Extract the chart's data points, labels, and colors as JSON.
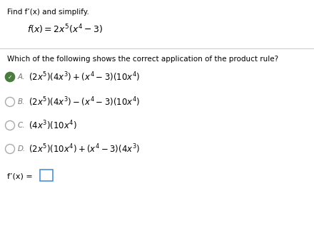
{
  "bg_color": "#ffffff",
  "text_color": "#000000",
  "label_color": "#777777",
  "question_color": "#000000",
  "radio_green": "#4a7c3f",
  "radio_gray": "#aaaaaa",
  "box_blue": "#4a90d9",
  "title": "Find f’(x) and simplify.",
  "function_expr": "$f(x) = 2x^5\\left(x^4-3\\right)$",
  "question": "Which of the following shows the correct application of the product rule?",
  "opt_A": "$\\left(2x^5\\right)\\left(4x^3\\right)+\\left(x^4-3\\right)\\left(10x^4\\right)$",
  "opt_B": "$\\left(2x^5\\right)\\left(4x^3\\right)-\\left(x^4-3\\right)\\left(10x^4\\right)$",
  "opt_C": "$\\left(4x^3\\right)\\left(10x^4\\right)$",
  "opt_D": "$\\left(2x^5\\right)\\left(10x^4\\right)+\\left(x^4-3\\right)\\left(4x^3\\right)$",
  "selected": 0,
  "title_fontsize": 7.5,
  "func_fontsize": 9.0,
  "question_fontsize": 7.5,
  "option_fontsize": 8.5,
  "label_fontsize": 7.5,
  "fprime_fontsize": 8.0
}
